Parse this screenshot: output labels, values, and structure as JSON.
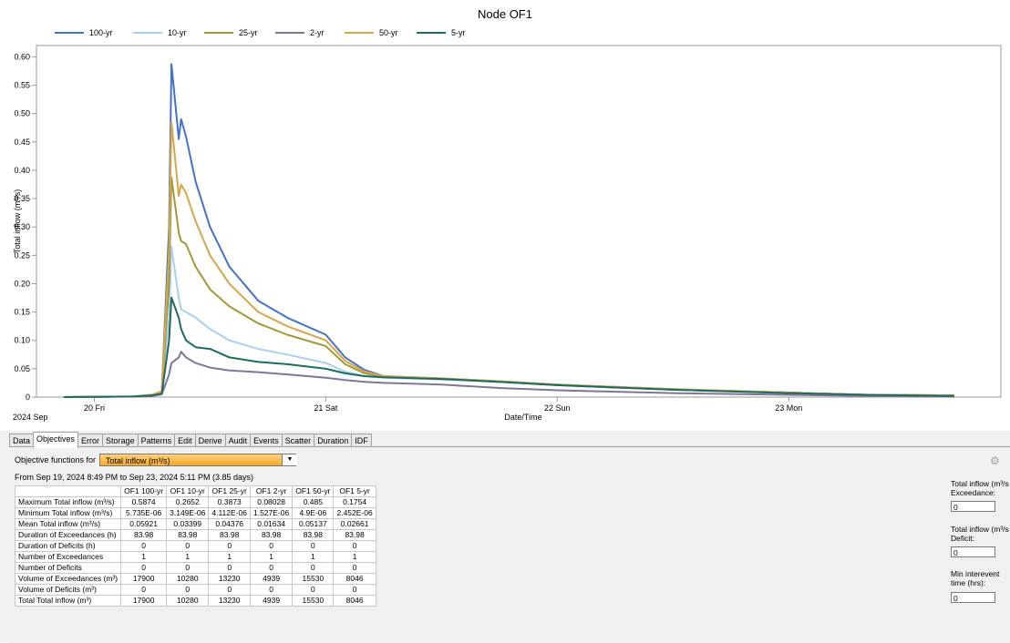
{
  "chart_data": {
    "type": "line",
    "title": "Node OF1",
    "xlabel": "Date/Time",
    "ylabel": "Total inflow (m³/s)",
    "ylim": [
      0,
      0.62
    ],
    "yticks": [
      0,
      0.05,
      0.1,
      0.15,
      0.2,
      0.25,
      0.3,
      0.35,
      0.4,
      0.45,
      0.5,
      0.55,
      0.6
    ],
    "ytick_labels": [
      "0",
      "0.05",
      "0.10",
      "0.15",
      "0.20",
      "0.25",
      "0.30",
      "0.35",
      "0.40",
      "0.45",
      "0.50",
      "0.55",
      "0.60"
    ],
    "xlim": [
      "2024-09-19 18:00",
      "2024-09-23 22:00"
    ],
    "xticks": [
      "2024-09-20 00:00",
      "2024-09-21 00:00",
      "2024-09-22 00:00",
      "2024-09-23 00:00"
    ],
    "xtick_labels": [
      "20 Fri",
      "21 Sat",
      "22 Sun",
      "23 Mon"
    ],
    "x_period_label": "2024 Sep",
    "legend_position": "top",
    "grid": false,
    "x": [
      "2024-09-19 20:49",
      "2024-09-20 04:00",
      "2024-09-20 06:00",
      "2024-09-20 07:00",
      "2024-09-20 07:45",
      "2024-09-20 08:00",
      "2024-09-20 08:45",
      "2024-09-20 09:00",
      "2024-09-20 09:30",
      "2024-09-20 10:30",
      "2024-09-20 12:00",
      "2024-09-20 14:00",
      "2024-09-20 17:00",
      "2024-09-20 20:00",
      "2024-09-21 00:00",
      "2024-09-21 02:00",
      "2024-09-21 04:00",
      "2024-09-21 06:00",
      "2024-09-21 12:00",
      "2024-09-21 18:00",
      "2024-09-22 00:00",
      "2024-09-22 12:00",
      "2024-09-23 00:00",
      "2024-09-23 08:00",
      "2024-09-23 17:11"
    ],
    "series": [
      {
        "name": "100-yr",
        "color": "#4472c4",
        "values": [
          0,
          0.001,
          0.004,
          0.01,
          0.3,
          0.5874,
          0.455,
          0.49,
          0.46,
          0.38,
          0.3,
          0.23,
          0.17,
          0.14,
          0.11,
          0.07,
          0.048,
          0.037,
          0.033,
          0.028,
          0.022,
          0.014,
          0.008,
          0.004,
          0.003
        ]
      },
      {
        "name": "10-yr",
        "color": "#a9cfee",
        "values": [
          0,
          0.001,
          0.003,
          0.008,
          0.14,
          0.2652,
          0.175,
          0.155,
          0.15,
          0.14,
          0.12,
          0.1,
          0.085,
          0.075,
          0.06,
          0.045,
          0.037,
          0.034,
          0.031,
          0.027,
          0.021,
          0.013,
          0.007,
          0.003,
          0.002
        ]
      },
      {
        "name": "25-yr",
        "color": "#a09a3a",
        "values": [
          0,
          0.001,
          0.004,
          0.009,
          0.2,
          0.3873,
          0.29,
          0.275,
          0.27,
          0.23,
          0.19,
          0.16,
          0.13,
          0.11,
          0.09,
          0.058,
          0.042,
          0.036,
          0.032,
          0.027,
          0.021,
          0.013,
          0.008,
          0.004,
          0.003
        ]
      },
      {
        "name": "2-yr",
        "color": "#7f7698",
        "values": [
          0,
          0.001,
          0.002,
          0.005,
          0.04,
          0.06,
          0.07,
          0.08,
          0.07,
          0.06,
          0.052,
          0.047,
          0.044,
          0.04,
          0.034,
          0.03,
          0.027,
          0.025,
          0.022,
          0.016,
          0.012,
          0.007,
          0.004,
          0.002,
          0.001
        ]
      },
      {
        "name": "50-yr",
        "color": "#d7a64a",
        "values": [
          0,
          0.001,
          0.004,
          0.01,
          0.26,
          0.485,
          0.355,
          0.375,
          0.36,
          0.31,
          0.25,
          0.2,
          0.15,
          0.125,
          0.1,
          0.064,
          0.045,
          0.037,
          0.033,
          0.028,
          0.022,
          0.014,
          0.008,
          0.004,
          0.003
        ]
      },
      {
        "name": "5-yr",
        "color": "#1f6b5e",
        "values": [
          0,
          0.001,
          0.003,
          0.006,
          0.1,
          0.1754,
          0.14,
          0.12,
          0.1,
          0.088,
          0.085,
          0.07,
          0.062,
          0.058,
          0.05,
          0.042,
          0.037,
          0.035,
          0.032,
          0.027,
          0.021,
          0.013,
          0.007,
          0.004,
          0.002
        ]
      }
    ]
  },
  "tabs": [
    "Data",
    "Objectives",
    "Error",
    "Storage",
    "Patterns",
    "Edit",
    "Derive",
    "Audit",
    "Events",
    "Scatter",
    "Duration",
    "IDF"
  ],
  "active_tab": "Objectives",
  "objectives": {
    "label": "Objective functions for",
    "selected": "Total inflow (m³/s)",
    "range_text": "From Sep 19, 2024 8:49 PM to Sep 23, 2024 5:11 PM (3.85 days)"
  },
  "table": {
    "columns": [
      "",
      "OF1 100-yr",
      "OF1 10-yr",
      "OF1 25-yr",
      "OF1 2-yr",
      "OF1 50-yr",
      "OF1 5-yr"
    ],
    "rows": [
      [
        "Maximum Total inflow (m³/s)",
        "0.5874",
        "0.2652",
        "0.3873",
        "0.08028",
        "0.485",
        "0.1754"
      ],
      [
        "Minimum Total inflow (m³/s)",
        "5.735E-06",
        "3.149E-06",
        "4.112E-06",
        "1.527E-06",
        "4.9E-06",
        "2.452E-06"
      ],
      [
        "Mean Total inflow (m³/s)",
        "0.05921",
        "0.03399",
        "0.04376",
        "0.01634",
        "0.05137",
        "0.02661"
      ],
      [
        "Duration of Exceedances (h)",
        "83.98",
        "83.98",
        "83.98",
        "83.98",
        "83.98",
        "83.98"
      ],
      [
        "Duration of Deficits (h)",
        "0",
        "0",
        "0",
        "0",
        "0",
        "0"
      ],
      [
        "Number of Exceedances",
        "1",
        "1",
        "1",
        "1",
        "1",
        "1"
      ],
      [
        "Number of Deficits",
        "0",
        "0",
        "0",
        "0",
        "0",
        "0"
      ],
      [
        "Volume of Exceedances (m³)",
        "17900",
        "10280",
        "13230",
        "4939",
        "15530",
        "8046"
      ],
      [
        "Volume of Deficits (m³)",
        "0",
        "0",
        "0",
        "0",
        "0",
        "0"
      ],
      [
        "Total Total inflow (m³)",
        "17900",
        "10280",
        "13230",
        "4939",
        "15530",
        "8046"
      ]
    ]
  },
  "side": {
    "exceedance_label1": "Total inflow (m³/s",
    "exceedance_label2": "Exceedance:",
    "exceedance_value": "0",
    "deficit_label1": "Total inflow (m³/s",
    "deficit_label2": "Deficit:",
    "deficit_value": "0",
    "interevent_label1": "Min interevent",
    "interevent_label2": "time (hrs):",
    "interevent_value": "0"
  }
}
